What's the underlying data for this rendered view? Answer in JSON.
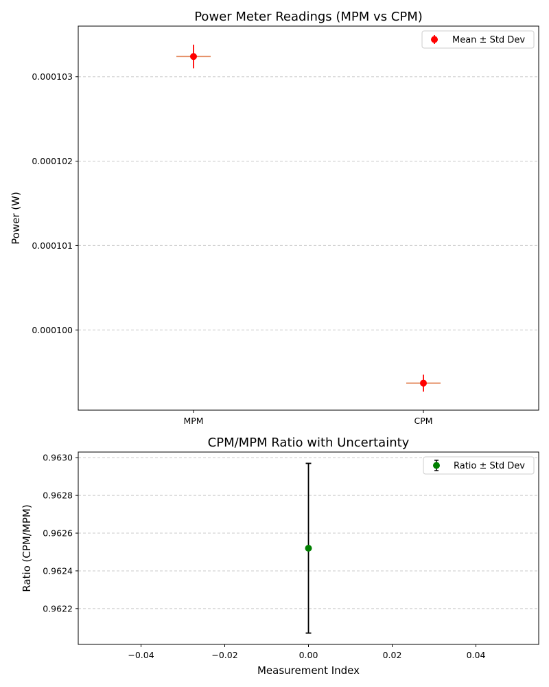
{
  "chart_data": [
    {
      "type": "scatter",
      "title": "Power Meter Readings (MPM vs CPM)",
      "xlabel": "",
      "ylabel": "Power (W)",
      "categories": [
        "MPM",
        "CPM"
      ],
      "ytick_labels": [
        "0.000100",
        "0.000101",
        "0.000102",
        "0.000103"
      ],
      "yticks": [
        0.0001,
        0.000101,
        0.000102,
        0.000103
      ],
      "ylim": [
        9.905e-05,
        0.0001036
      ],
      "grid": "y",
      "legend": "top-right",
      "series": [
        {
          "name": "Mean ± Std Dev",
          "color": "#ff0000",
          "means": [
            0.00010324,
            9.937e-05
          ],
          "stds": [
            1.4e-07,
            1e-07
          ]
        }
      ],
      "horizontal_markers": {
        "color": "#e3875c",
        "values": [
          0.00010324,
          9.937e-05
        ]
      }
    },
    {
      "type": "scatter",
      "title": "CPM/MPM Ratio with Uncertainty",
      "xlabel": "Measurement Index",
      "ylabel": "Ratio (CPM/MPM)",
      "xlim": [
        -0.055,
        0.055
      ],
      "xticks": [
        -0.04,
        -0.02,
        0.0,
        0.02,
        0.04
      ],
      "xtick_labels": [
        "−0.04",
        "−0.02",
        "0.00",
        "0.02",
        "0.04"
      ],
      "ylim": [
        0.96201,
        0.96303
      ],
      "yticks": [
        0.9622,
        0.9624,
        0.9626,
        0.9628,
        0.963
      ],
      "ytick_labels": [
        "0.9622",
        "0.9624",
        "0.9626",
        "0.9628",
        "0.9630"
      ],
      "grid": "y",
      "legend": "top-right",
      "series": [
        {
          "name": "Ratio ± Std Dev",
          "color": "#008000",
          "errorbar_color": "#000000",
          "x": [
            0
          ],
          "y": [
            0.96252
          ],
          "stds": [
            0.00045
          ]
        }
      ]
    }
  ]
}
